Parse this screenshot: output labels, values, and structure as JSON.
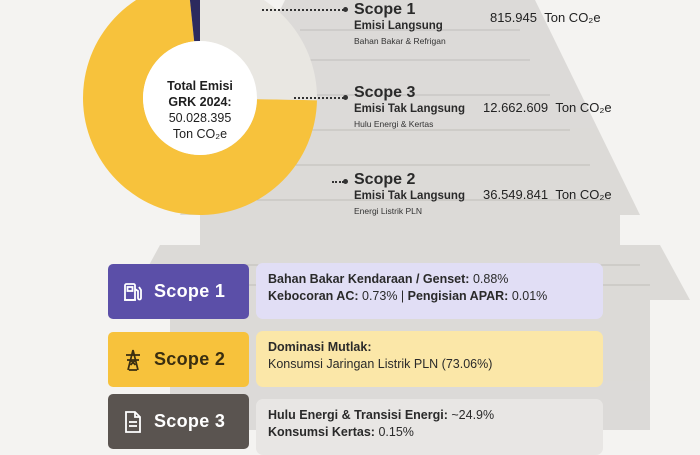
{
  "chart_data": {
    "type": "pie",
    "style": "donut",
    "center": {
      "title_line1": "Total Emisi",
      "title_line2": "GRK 2024:",
      "value": "50.028.395",
      "unit": "Ton CO₂e"
    },
    "slices": [
      {
        "name": "Scope 2",
        "value": 36549841,
        "color": "#f7c23c"
      },
      {
        "name": "Scope 1",
        "value": 815945,
        "color": "#2c2a5e"
      },
      {
        "name": "Scope 3",
        "value": 12662609,
        "color": "#e9e7e2"
      }
    ]
  },
  "scopes": [
    {
      "name": "Scope 1",
      "type": "Emisi Langsung",
      "source": "Bahan Bakar & Refrigan",
      "value": "815.945",
      "unit": "Ton CO₂e"
    },
    {
      "name": "Scope 3",
      "type": "Emisi Tak Langsung",
      "source": "Hulu Energi & Kertas",
      "value": "12.662.609",
      "unit": "Ton CO₂e"
    },
    {
      "name": "Scope 2",
      "type": "Emisi Tak Langsung",
      "source": "Energi Listrik PLN",
      "value": "36.549.841",
      "unit": "Ton CO₂e"
    }
  ],
  "cards": [
    {
      "badge": "Scope 1",
      "icon": "fuel-pump-icon",
      "badge_color": "#5b4fa8",
      "card_color": "#e1def5",
      "line1_bold": "Bahan Bakar Kendaraan / Genset:",
      "line1_rest": " 0.88%",
      "line2_bold_a": "Kebocoran AC:",
      "line2_rest_a": " 0.73% | ",
      "line2_bold_b": "Pengisian APAR:",
      "line2_rest_b": " 0.01%"
    },
    {
      "badge": "Scope 2",
      "icon": "power-tower-icon",
      "badge_color": "#f7c23c",
      "card_color": "#fbe7a8",
      "line1_bold": "Dominasi Mutlak:",
      "line1_rest": "",
      "line2": "Konsumsi Jaringan Listrik PLN (73.06%)"
    },
    {
      "badge": "Scope 3",
      "icon": "document-icon",
      "badge_color": "#5a5450",
      "card_color": "#e8e6e4",
      "line1_bold": "Hulu Energi & Transisi Energi:",
      "line1_rest": " ~24.9%",
      "line2_bold_a": "Konsumsi Kertas:",
      "line2_rest_a": " 0.15%"
    }
  ]
}
